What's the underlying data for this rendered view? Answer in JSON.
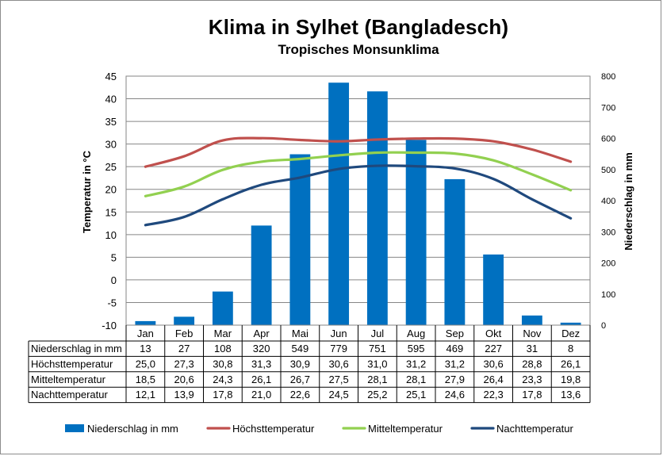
{
  "chart_data": {
    "type": "bar",
    "title": "Klima in Sylhet (Bangladesch)",
    "subtitle": "Tropisches Monsunklima",
    "categories": [
      "Jan",
      "Feb",
      "Mar",
      "Apr",
      "Mai",
      "Jun",
      "Jul",
      "Aug",
      "Sep",
      "Okt",
      "Nov",
      "Dez"
    ],
    "ylabel_left": "Temperatur in °C",
    "ylabel_right": "Niederschlag in mm",
    "ylim_left": [
      -10,
      45
    ],
    "ylim_right": [
      0,
      800
    ],
    "yticks_left": [
      "45",
      "40",
      "35",
      "30",
      "25",
      "20",
      "15",
      "10",
      "5",
      "0",
      "-5",
      "-10"
    ],
    "yticks_right": [
      "800",
      "700",
      "600",
      "500",
      "400",
      "300",
      "200",
      "100",
      "0"
    ],
    "grid": true,
    "legend_position": "bottom",
    "series": [
      {
        "name": "Niederschlag in mm",
        "kind": "bar",
        "axis": "right",
        "color": "#0070C0",
        "values": [
          13,
          27,
          108,
          320,
          549,
          779,
          751,
          595,
          469,
          227,
          31,
          8
        ],
        "labels": [
          "13",
          "27",
          "108",
          "320",
          "549",
          "779",
          "751",
          "595",
          "469",
          "227",
          "31",
          "8"
        ]
      },
      {
        "name": "Höchsttemperatur",
        "kind": "line",
        "axis": "left",
        "color": "#C0504D",
        "values": [
          25.0,
          27.3,
          30.8,
          31.3,
          30.9,
          30.6,
          31.0,
          31.2,
          31.2,
          30.6,
          28.8,
          26.1
        ],
        "labels": [
          "25,0",
          "27,3",
          "30,8",
          "31,3",
          "30,9",
          "30,6",
          "31,0",
          "31,2",
          "31,2",
          "30,6",
          "28,8",
          "26,1"
        ]
      },
      {
        "name": "Mitteltemperatur",
        "kind": "line",
        "axis": "left",
        "color": "#92D050",
        "values": [
          18.5,
          20.6,
          24.3,
          26.1,
          26.7,
          27.5,
          28.1,
          28.1,
          27.9,
          26.4,
          23.3,
          19.8
        ],
        "labels": [
          "18,5",
          "20,6",
          "24,3",
          "26,1",
          "26,7",
          "27,5",
          "28,1",
          "28,1",
          "27,9",
          "26,4",
          "23,3",
          "19,8"
        ]
      },
      {
        "name": "Nachttemperatur",
        "kind": "line",
        "axis": "left",
        "color": "#1F497D",
        "values": [
          12.1,
          13.9,
          17.8,
          21.0,
          22.6,
          24.5,
          25.2,
          25.1,
          24.6,
          22.3,
          17.8,
          13.6
        ],
        "labels": [
          "12,1",
          "13,9",
          "17,8",
          "21,0",
          "22,6",
          "24,5",
          "25,2",
          "25,1",
          "24,6",
          "22,3",
          "17,8",
          "13,6"
        ]
      }
    ]
  }
}
